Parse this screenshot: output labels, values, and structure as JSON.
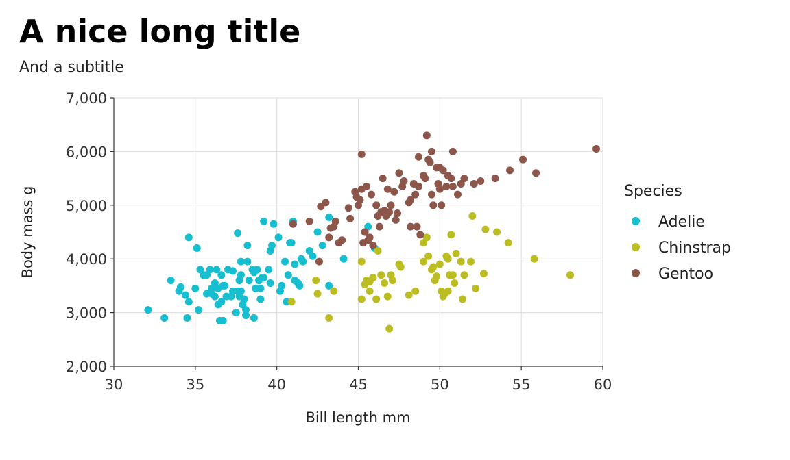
{
  "chart_data": {
    "type": "scatter",
    "title": "A nice long title",
    "subtitle": "And a subtitle",
    "xlabel": "Bill length mm",
    "ylabel": "Body mass g",
    "xlim": [
      30,
      60
    ],
    "ylim": [
      2000,
      7000
    ],
    "xticks": [
      30,
      35,
      40,
      45,
      50,
      55,
      60
    ],
    "xtick_labels": [
      "30",
      "35",
      "40",
      "45",
      "50",
      "55",
      "60"
    ],
    "yticks": [
      2000,
      3000,
      4000,
      5000,
      6000,
      7000
    ],
    "ytick_labels": [
      "2,000",
      "3,000",
      "4,000",
      "5,000",
      "6,000",
      "7,000"
    ],
    "grid": true,
    "legend": {
      "title": "Species",
      "placement": "right"
    },
    "series": [
      {
        "name": "Adelie",
        "color": "#17becf",
        "points": [
          [
            32.1,
            3050
          ],
          [
            33.1,
            2900
          ],
          [
            33.5,
            3600
          ],
          [
            34.0,
            3400
          ],
          [
            34.1,
            3475
          ],
          [
            34.4,
            3325
          ],
          [
            34.5,
            2900
          ],
          [
            34.6,
            3200
          ],
          [
            34.6,
            4400
          ],
          [
            35.0,
            3450
          ],
          [
            35.1,
            4200
          ],
          [
            35.2,
            3050
          ],
          [
            35.3,
            3800
          ],
          [
            35.5,
            3700
          ],
          [
            35.7,
            3350
          ],
          [
            35.9,
            3800
          ],
          [
            36.0,
            3350
          ],
          [
            36.0,
            3450
          ],
          [
            36.2,
            3300
          ],
          [
            36.2,
            3550
          ],
          [
            36.3,
            3800
          ],
          [
            36.4,
            3150
          ],
          [
            36.4,
            3450
          ],
          [
            36.5,
            2850
          ],
          [
            36.6,
            3700
          ],
          [
            36.6,
            3200
          ],
          [
            36.7,
            2850
          ],
          [
            36.8,
            3500
          ],
          [
            36.9,
            3300
          ],
          [
            37.0,
            3800
          ],
          [
            37.2,
            3300
          ],
          [
            37.3,
            3400
          ],
          [
            37.3,
            3775
          ],
          [
            37.5,
            3000
          ],
          [
            37.6,
            3400
          ],
          [
            37.7,
            3600
          ],
          [
            37.7,
            3300
          ],
          [
            37.8,
            3700
          ],
          [
            37.8,
            3400
          ],
          [
            37.9,
            3150
          ],
          [
            38.0,
            3250
          ],
          [
            38.1,
            3050
          ],
          [
            38.1,
            2950
          ],
          [
            38.2,
            3950
          ],
          [
            38.3,
            3600
          ],
          [
            38.5,
            3800
          ],
          [
            38.6,
            3750
          ],
          [
            38.7,
            3450
          ],
          [
            38.8,
            3800
          ],
          [
            39.0,
            3450
          ],
          [
            39.1,
            3650
          ],
          [
            39.2,
            4700
          ],
          [
            39.5,
            3800
          ],
          [
            39.6,
            3550
          ],
          [
            39.7,
            4250
          ],
          [
            39.8,
            4650
          ],
          [
            40.1,
            4400
          ],
          [
            40.3,
            3500
          ],
          [
            40.5,
            3950
          ],
          [
            40.7,
            3700
          ],
          [
            40.9,
            4300
          ],
          [
            41.0,
            4700
          ],
          [
            41.1,
            3900
          ],
          [
            41.3,
            3550
          ],
          [
            41.5,
            4000
          ],
          [
            41.6,
            3950
          ],
          [
            42.0,
            4150
          ],
          [
            42.2,
            4050
          ],
          [
            42.5,
            4500
          ],
          [
            42.8,
            4250
          ],
          [
            43.2,
            4775
          ],
          [
            43.2,
            3500
          ],
          [
            44.1,
            4000
          ],
          [
            45.6,
            4600
          ],
          [
            46.0,
            4200
          ],
          [
            40.2,
            3400
          ],
          [
            39.2,
            3650
          ],
          [
            38.6,
            2900
          ],
          [
            36.7,
            3500
          ],
          [
            38.9,
            3600
          ],
          [
            37.8,
            3950
          ],
          [
            35.7,
            3700
          ],
          [
            39.6,
            4150
          ],
          [
            40.8,
            4300
          ],
          [
            41.4,
            3500
          ],
          [
            37.6,
            4480
          ],
          [
            38.2,
            4250
          ],
          [
            39.0,
            3250
          ],
          [
            40.6,
            3200
          ],
          [
            41.1,
            3600
          ]
        ]
      },
      {
        "name": "Chinstrap",
        "color": "#bcbd22",
        "points": [
          [
            40.9,
            3200
          ],
          [
            42.4,
            3600
          ],
          [
            42.5,
            3350
          ],
          [
            43.2,
            2900
          ],
          [
            43.5,
            3400
          ],
          [
            45.2,
            3250
          ],
          [
            45.4,
            3525
          ],
          [
            45.5,
            3600
          ],
          [
            45.7,
            3400
          ],
          [
            45.9,
            3650
          ],
          [
            46.1,
            3250
          ],
          [
            46.4,
            3700
          ],
          [
            46.6,
            3550
          ],
          [
            46.8,
            3300
          ],
          [
            46.9,
            2700
          ],
          [
            47.0,
            3700
          ],
          [
            47.5,
            3900
          ],
          [
            47.6,
            3850
          ],
          [
            48.1,
            3325
          ],
          [
            48.5,
            3400
          ],
          [
            49.0,
            4300
          ],
          [
            49.0,
            3950
          ],
          [
            49.2,
            4400
          ],
          [
            49.3,
            4050
          ],
          [
            49.5,
            3800
          ],
          [
            49.7,
            3600
          ],
          [
            49.8,
            3675
          ],
          [
            50.0,
            3900
          ],
          [
            50.1,
            3400
          ],
          [
            50.2,
            3300
          ],
          [
            50.3,
            3350
          ],
          [
            50.4,
            4050
          ],
          [
            50.5,
            3400
          ],
          [
            50.6,
            3700
          ],
          [
            50.7,
            4450
          ],
          [
            50.8,
            3700
          ],
          [
            50.9,
            3550
          ],
          [
            51.0,
            4100
          ],
          [
            51.3,
            3950
          ],
          [
            51.4,
            3250
          ],
          [
            51.5,
            3700
          ],
          [
            51.9,
            3950
          ],
          [
            52.0,
            4800
          ],
          [
            52.2,
            3450
          ],
          [
            52.7,
            3725
          ],
          [
            52.8,
            4550
          ],
          [
            53.5,
            4500
          ],
          [
            54.2,
            4300
          ],
          [
            55.8,
            4000
          ],
          [
            58.0,
            3700
          ],
          [
            45.2,
            3950
          ],
          [
            46.2,
            4150
          ],
          [
            45.7,
            3575
          ],
          [
            49.6,
            3850
          ],
          [
            47.1,
            3600
          ],
          [
            50.5,
            4000
          ]
        ]
      },
      {
        "name": "Gentoo",
        "color": "#8c564b",
        "points": [
          [
            41.0,
            4650
          ],
          [
            42.0,
            4700
          ],
          [
            42.6,
            3950
          ],
          [
            42.7,
            4975
          ],
          [
            43.0,
            5050
          ],
          [
            43.2,
            4400
          ],
          [
            43.3,
            4575
          ],
          [
            43.5,
            4600
          ],
          [
            43.6,
            4700
          ],
          [
            44.0,
            4350
          ],
          [
            44.4,
            4950
          ],
          [
            44.5,
            4750
          ],
          [
            45.0,
            5000
          ],
          [
            45.1,
            5100
          ],
          [
            45.2,
            5950
          ],
          [
            45.3,
            4300
          ],
          [
            45.4,
            4500
          ],
          [
            45.5,
            5350
          ],
          [
            45.7,
            4400
          ],
          [
            45.8,
            5200
          ],
          [
            46.1,
            5000
          ],
          [
            46.2,
            4800
          ],
          [
            46.4,
            4875
          ],
          [
            46.5,
            5500
          ],
          [
            46.8,
            5300
          ],
          [
            47.2,
            5250
          ],
          [
            47.5,
            5600
          ],
          [
            47.7,
            5350
          ],
          [
            48.1,
            5050
          ],
          [
            48.4,
            5400
          ],
          [
            48.5,
            5200
          ],
          [
            48.7,
            5350
          ],
          [
            49.0,
            5550
          ],
          [
            49.1,
            5500
          ],
          [
            49.2,
            6300
          ],
          [
            49.4,
            5800
          ],
          [
            49.5,
            5200
          ],
          [
            49.6,
            5000
          ],
          [
            49.8,
            5700
          ],
          [
            50.0,
            5700
          ],
          [
            50.1,
            5000
          ],
          [
            50.2,
            5650
          ],
          [
            50.4,
            5350
          ],
          [
            50.5,
            5550
          ],
          [
            50.7,
            5500
          ],
          [
            50.8,
            5350
          ],
          [
            51.1,
            5200
          ],
          [
            51.3,
            5400
          ],
          [
            51.5,
            5500
          ],
          [
            52.1,
            5400
          ],
          [
            52.5,
            5450
          ],
          [
            53.4,
            5500
          ],
          [
            54.3,
            5650
          ],
          [
            55.1,
            5850
          ],
          [
            55.9,
            5600
          ],
          [
            59.6,
            6050
          ],
          [
            46.9,
            4875
          ],
          [
            47.3,
            4725
          ],
          [
            48.2,
            4600
          ],
          [
            48.8,
            4450
          ],
          [
            49.9,
            5400
          ],
          [
            46.7,
            4800
          ],
          [
            44.9,
            5150
          ],
          [
            45.6,
            4350
          ],
          [
            48.6,
            4600
          ],
          [
            50.8,
            6000
          ],
          [
            47.4,
            4850
          ],
          [
            46.3,
            4600
          ],
          [
            45.9,
            4250
          ],
          [
            49.3,
            5850
          ],
          [
            47.8,
            5450
          ],
          [
            48.7,
            5900
          ],
          [
            43.8,
            4300
          ],
          [
            44.8,
            5250
          ],
          [
            46.6,
            4900
          ],
          [
            47.0,
            5000
          ],
          [
            50.0,
            5300
          ],
          [
            45.2,
            5300
          ],
          [
            48.2,
            5100
          ],
          [
            49.5,
            6000
          ]
        ]
      }
    ]
  }
}
